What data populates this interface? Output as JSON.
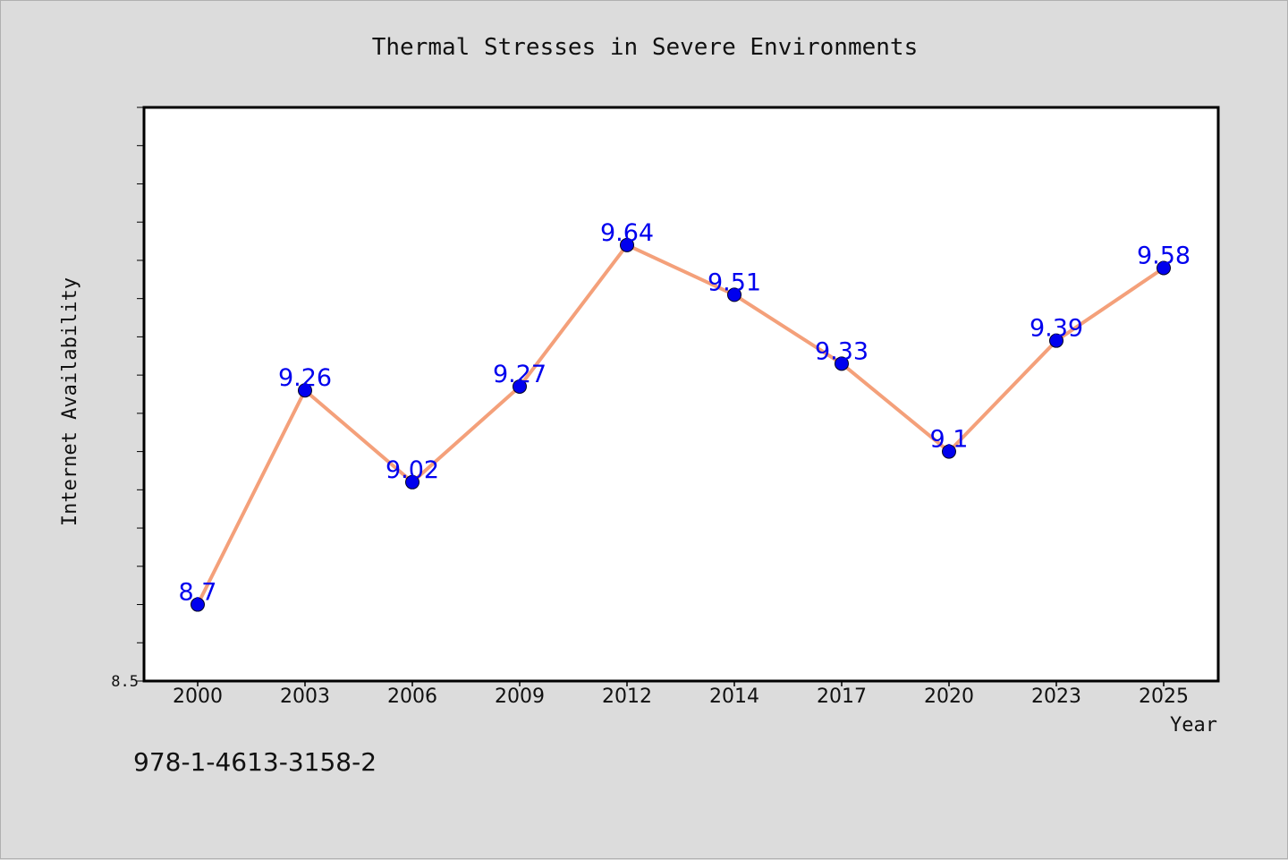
{
  "chart_data": {
    "type": "line",
    "title": "Thermal Stresses in Severe Environments",
    "xlabel": "Year",
    "ylabel": "Internet Availability",
    "categories": [
      "2000",
      "2003",
      "2006",
      "2009",
      "2012",
      "2014",
      "2017",
      "2020",
      "2023",
      "2025"
    ],
    "series": [
      {
        "values": [
          8.7,
          9.26,
          9.02,
          9.27,
          9.64,
          9.51,
          9.33,
          9.1,
          9.39,
          9.58
        ],
        "data_labels": [
          "8.7",
          "9.26",
          "9.02",
          "9.27",
          "9.64",
          "9.51",
          "9.33",
          "9.1",
          "9.39",
          "9.58"
        ]
      }
    ],
    "ylim": [
      8.5,
      10.0
    ],
    "ytick_labels": [
      "8.5"
    ],
    "grid": false,
    "colors": {
      "line": "#f4a07a",
      "marker": "#0000ee",
      "data_label": "#0000ee",
      "plot_bg": "#ffffff",
      "page_bg": "#dcdcdc"
    }
  },
  "footer": {
    "isbn": "978-1-4613-3158-2"
  }
}
